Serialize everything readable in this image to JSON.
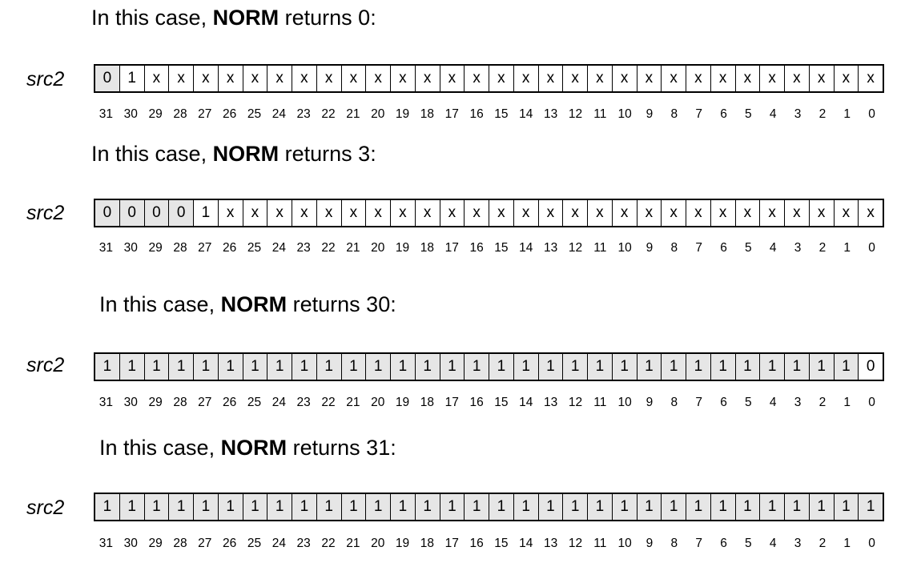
{
  "register_label": "src2",
  "heading_prefix": "In this case,",
  "heading_keyword": "NORM",
  "heading_verb": "returns",
  "bit_indices": [
    "31",
    "30",
    "29",
    "28",
    "27",
    "26",
    "25",
    "24",
    "23",
    "22",
    "21",
    "20",
    "19",
    "18",
    "17",
    "16",
    "15",
    "14",
    "13",
    "12",
    "11",
    "10",
    "9",
    "8",
    "7",
    "6",
    "5",
    "4",
    "3",
    "2",
    "1",
    "0"
  ],
  "cases": [
    {
      "result": "0:",
      "bits": [
        "0",
        "1",
        "x",
        "x",
        "x",
        "x",
        "x",
        "x",
        "x",
        "x",
        "x",
        "x",
        "x",
        "x",
        "x",
        "x",
        "x",
        "x",
        "x",
        "x",
        "x",
        "x",
        "x",
        "x",
        "x",
        "x",
        "x",
        "x",
        "x",
        "x",
        "x",
        "x"
      ],
      "shaded_count": 1
    },
    {
      "result": "3:",
      "bits": [
        "0",
        "0",
        "0",
        "0",
        "1",
        "x",
        "x",
        "x",
        "x",
        "x",
        "x",
        "x",
        "x",
        "x",
        "x",
        "x",
        "x",
        "x",
        "x",
        "x",
        "x",
        "x",
        "x",
        "x",
        "x",
        "x",
        "x",
        "x",
        "x",
        "x",
        "x",
        "x"
      ],
      "shaded_count": 4
    },
    {
      "result": "30:",
      "bits": [
        "1",
        "1",
        "1",
        "1",
        "1",
        "1",
        "1",
        "1",
        "1",
        "1",
        "1",
        "1",
        "1",
        "1",
        "1",
        "1",
        "1",
        "1",
        "1",
        "1",
        "1",
        "1",
        "1",
        "1",
        "1",
        "1",
        "1",
        "1",
        "1",
        "1",
        "1",
        "0"
      ],
      "shaded_count": 31
    },
    {
      "result": "31:",
      "bits": [
        "1",
        "1",
        "1",
        "1",
        "1",
        "1",
        "1",
        "1",
        "1",
        "1",
        "1",
        "1",
        "1",
        "1",
        "1",
        "1",
        "1",
        "1",
        "1",
        "1",
        "1",
        "1",
        "1",
        "1",
        "1",
        "1",
        "1",
        "1",
        "1",
        "1",
        "1",
        "1"
      ],
      "shaded_count": 32
    }
  ]
}
